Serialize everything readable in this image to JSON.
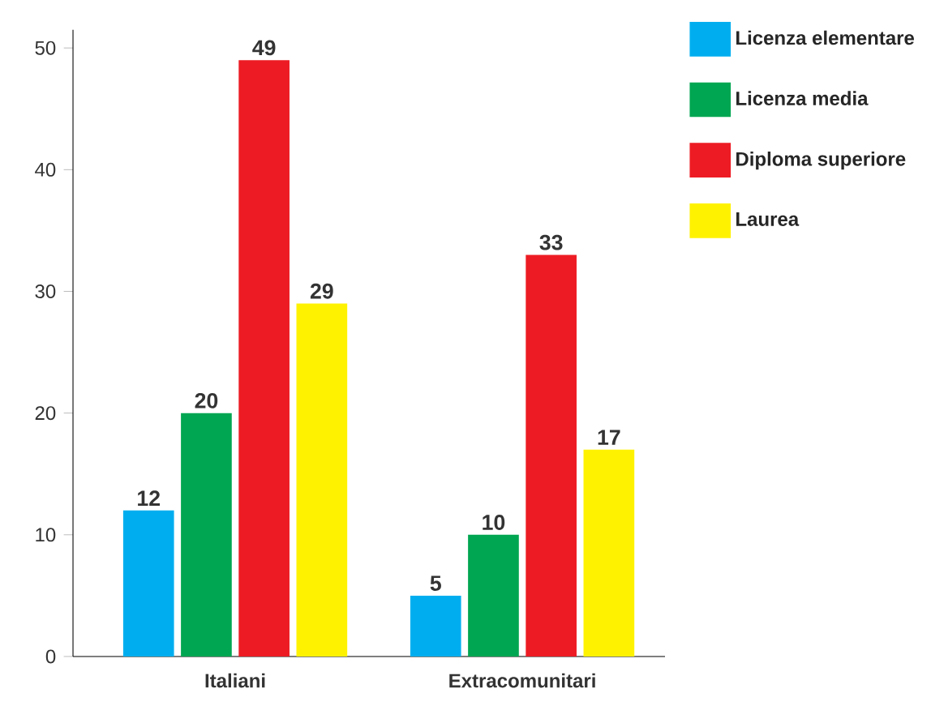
{
  "chart_data": {
    "type": "bar",
    "categories": [
      "Italiani",
      "Extracomunitari"
    ],
    "series": [
      {
        "name": "Licenza elementare",
        "color": "#00aeef",
        "values": [
          12,
          5
        ]
      },
      {
        "name": "Licenza media",
        "color": "#00a651",
        "values": [
          20,
          10
        ]
      },
      {
        "name": "Diploma superiore",
        "color": "#ed1c24",
        "values": [
          49,
          33
        ]
      },
      {
        "name": "Laurea",
        "color": "#fff200",
        "values": [
          29,
          17
        ]
      }
    ],
    "ylim": [
      0,
      51.5
    ],
    "yticks": [
      0,
      10,
      20,
      30,
      40,
      50
    ],
    "data_labels": true,
    "legend": "top right",
    "grid": false
  }
}
